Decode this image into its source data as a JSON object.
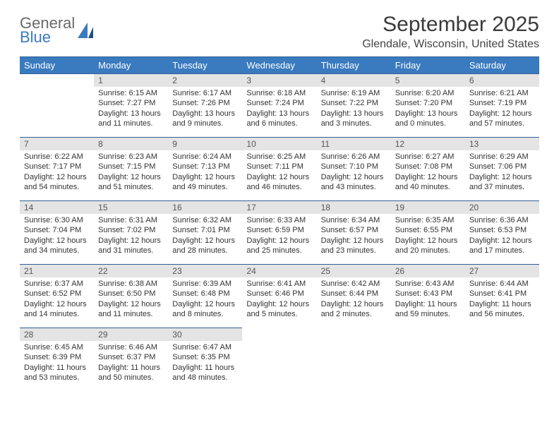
{
  "brand": {
    "general": "General",
    "blue": "Blue"
  },
  "colors": {
    "header_bg": "#3a7abf",
    "header_border": "#2f5f94",
    "daynum_bg": "#e4e4e4",
    "text": "#333333",
    "title": "#3a3a3a",
    "logo_gray": "#6a6a6a",
    "logo_blue": "#3a7abf",
    "background": "#ffffff"
  },
  "title": "September 2025",
  "location": "Glendale, Wisconsin, United States",
  "weekdays": [
    "Sunday",
    "Monday",
    "Tuesday",
    "Wednesday",
    "Thursday",
    "Friday",
    "Saturday"
  ],
  "weeks": [
    [
      {
        "empty": true
      },
      {
        "num": "1",
        "sunrise": "Sunrise: 6:15 AM",
        "sunset": "Sunset: 7:27 PM",
        "daylight1": "Daylight: 13 hours",
        "daylight2": "and 11 minutes."
      },
      {
        "num": "2",
        "sunrise": "Sunrise: 6:17 AM",
        "sunset": "Sunset: 7:26 PM",
        "daylight1": "Daylight: 13 hours",
        "daylight2": "and 9 minutes."
      },
      {
        "num": "3",
        "sunrise": "Sunrise: 6:18 AM",
        "sunset": "Sunset: 7:24 PM",
        "daylight1": "Daylight: 13 hours",
        "daylight2": "and 6 minutes."
      },
      {
        "num": "4",
        "sunrise": "Sunrise: 6:19 AM",
        "sunset": "Sunset: 7:22 PM",
        "daylight1": "Daylight: 13 hours",
        "daylight2": "and 3 minutes."
      },
      {
        "num": "5",
        "sunrise": "Sunrise: 6:20 AM",
        "sunset": "Sunset: 7:20 PM",
        "daylight1": "Daylight: 13 hours",
        "daylight2": "and 0 minutes."
      },
      {
        "num": "6",
        "sunrise": "Sunrise: 6:21 AM",
        "sunset": "Sunset: 7:19 PM",
        "daylight1": "Daylight: 12 hours",
        "daylight2": "and 57 minutes."
      }
    ],
    [
      {
        "num": "7",
        "sunrise": "Sunrise: 6:22 AM",
        "sunset": "Sunset: 7:17 PM",
        "daylight1": "Daylight: 12 hours",
        "daylight2": "and 54 minutes."
      },
      {
        "num": "8",
        "sunrise": "Sunrise: 6:23 AM",
        "sunset": "Sunset: 7:15 PM",
        "daylight1": "Daylight: 12 hours",
        "daylight2": "and 51 minutes."
      },
      {
        "num": "9",
        "sunrise": "Sunrise: 6:24 AM",
        "sunset": "Sunset: 7:13 PM",
        "daylight1": "Daylight: 12 hours",
        "daylight2": "and 49 minutes."
      },
      {
        "num": "10",
        "sunrise": "Sunrise: 6:25 AM",
        "sunset": "Sunset: 7:11 PM",
        "daylight1": "Daylight: 12 hours",
        "daylight2": "and 46 minutes."
      },
      {
        "num": "11",
        "sunrise": "Sunrise: 6:26 AM",
        "sunset": "Sunset: 7:10 PM",
        "daylight1": "Daylight: 12 hours",
        "daylight2": "and 43 minutes."
      },
      {
        "num": "12",
        "sunrise": "Sunrise: 6:27 AM",
        "sunset": "Sunset: 7:08 PM",
        "daylight1": "Daylight: 12 hours",
        "daylight2": "and 40 minutes."
      },
      {
        "num": "13",
        "sunrise": "Sunrise: 6:29 AM",
        "sunset": "Sunset: 7:06 PM",
        "daylight1": "Daylight: 12 hours",
        "daylight2": "and 37 minutes."
      }
    ],
    [
      {
        "num": "14",
        "sunrise": "Sunrise: 6:30 AM",
        "sunset": "Sunset: 7:04 PM",
        "daylight1": "Daylight: 12 hours",
        "daylight2": "and 34 minutes."
      },
      {
        "num": "15",
        "sunrise": "Sunrise: 6:31 AM",
        "sunset": "Sunset: 7:02 PM",
        "daylight1": "Daylight: 12 hours",
        "daylight2": "and 31 minutes."
      },
      {
        "num": "16",
        "sunrise": "Sunrise: 6:32 AM",
        "sunset": "Sunset: 7:01 PM",
        "daylight1": "Daylight: 12 hours",
        "daylight2": "and 28 minutes."
      },
      {
        "num": "17",
        "sunrise": "Sunrise: 6:33 AM",
        "sunset": "Sunset: 6:59 PM",
        "daylight1": "Daylight: 12 hours",
        "daylight2": "and 25 minutes."
      },
      {
        "num": "18",
        "sunrise": "Sunrise: 6:34 AM",
        "sunset": "Sunset: 6:57 PM",
        "daylight1": "Daylight: 12 hours",
        "daylight2": "and 23 minutes."
      },
      {
        "num": "19",
        "sunrise": "Sunrise: 6:35 AM",
        "sunset": "Sunset: 6:55 PM",
        "daylight1": "Daylight: 12 hours",
        "daylight2": "and 20 minutes."
      },
      {
        "num": "20",
        "sunrise": "Sunrise: 6:36 AM",
        "sunset": "Sunset: 6:53 PM",
        "daylight1": "Daylight: 12 hours",
        "daylight2": "and 17 minutes."
      }
    ],
    [
      {
        "num": "21",
        "sunrise": "Sunrise: 6:37 AM",
        "sunset": "Sunset: 6:52 PM",
        "daylight1": "Daylight: 12 hours",
        "daylight2": "and 14 minutes."
      },
      {
        "num": "22",
        "sunrise": "Sunrise: 6:38 AM",
        "sunset": "Sunset: 6:50 PM",
        "daylight1": "Daylight: 12 hours",
        "daylight2": "and 11 minutes."
      },
      {
        "num": "23",
        "sunrise": "Sunrise: 6:39 AM",
        "sunset": "Sunset: 6:48 PM",
        "daylight1": "Daylight: 12 hours",
        "daylight2": "and 8 minutes."
      },
      {
        "num": "24",
        "sunrise": "Sunrise: 6:41 AM",
        "sunset": "Sunset: 6:46 PM",
        "daylight1": "Daylight: 12 hours",
        "daylight2": "and 5 minutes."
      },
      {
        "num": "25",
        "sunrise": "Sunrise: 6:42 AM",
        "sunset": "Sunset: 6:44 PM",
        "daylight1": "Daylight: 12 hours",
        "daylight2": "and 2 minutes."
      },
      {
        "num": "26",
        "sunrise": "Sunrise: 6:43 AM",
        "sunset": "Sunset: 6:43 PM",
        "daylight1": "Daylight: 11 hours",
        "daylight2": "and 59 minutes."
      },
      {
        "num": "27",
        "sunrise": "Sunrise: 6:44 AM",
        "sunset": "Sunset: 6:41 PM",
        "daylight1": "Daylight: 11 hours",
        "daylight2": "and 56 minutes."
      }
    ],
    [
      {
        "num": "28",
        "sunrise": "Sunrise: 6:45 AM",
        "sunset": "Sunset: 6:39 PM",
        "daylight1": "Daylight: 11 hours",
        "daylight2": "and 53 minutes."
      },
      {
        "num": "29",
        "sunrise": "Sunrise: 6:46 AM",
        "sunset": "Sunset: 6:37 PM",
        "daylight1": "Daylight: 11 hours",
        "daylight2": "and 50 minutes."
      },
      {
        "num": "30",
        "sunrise": "Sunrise: 6:47 AM",
        "sunset": "Sunset: 6:35 PM",
        "daylight1": "Daylight: 11 hours",
        "daylight2": "and 48 minutes."
      },
      {
        "empty": true
      },
      {
        "empty": true
      },
      {
        "empty": true
      },
      {
        "empty": true
      }
    ]
  ]
}
